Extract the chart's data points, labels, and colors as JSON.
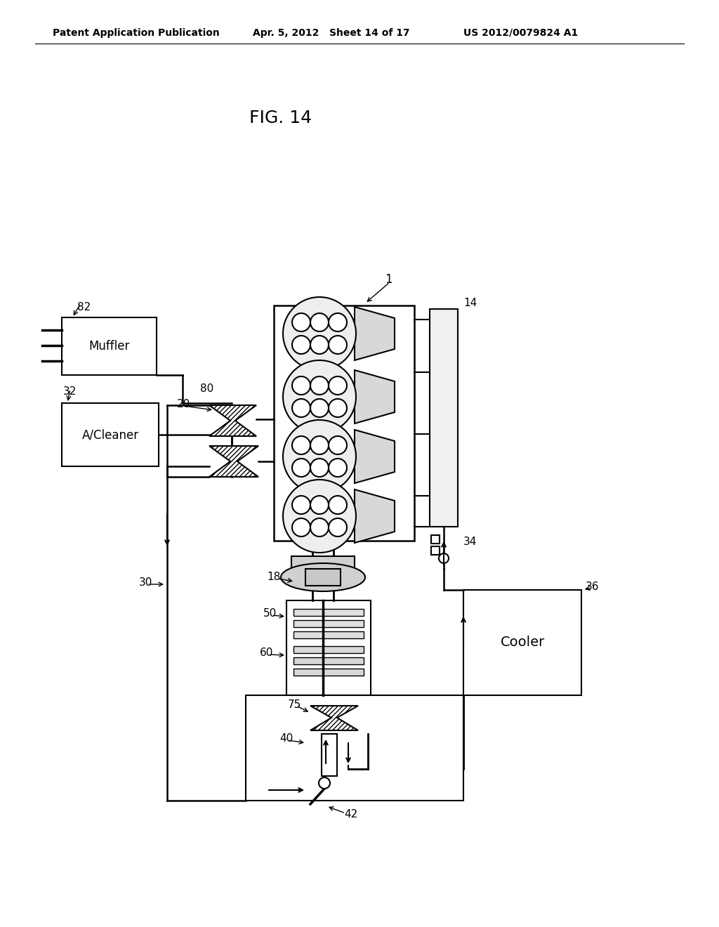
{
  "header_left": "Patent Application Publication",
  "header_mid": "Apr. 5, 2012   Sheet 14 of 17",
  "header_right": "US 2012/0079824 A1",
  "fig_label": "FIG. 14",
  "bg_color": "#ffffff"
}
